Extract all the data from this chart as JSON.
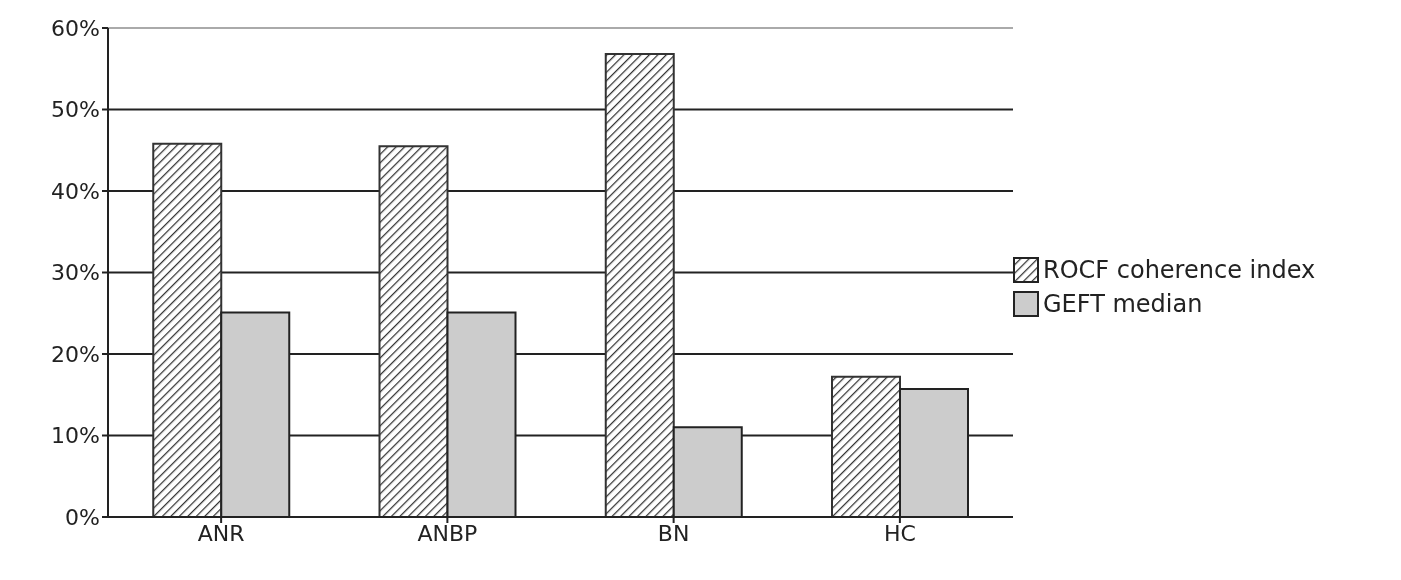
{
  "chart_data": {
    "type": "bar",
    "categories": [
      "ANR",
      "ANBP",
      "BN",
      "HC"
    ],
    "series": [
      {
        "name": "ROCF coherence index",
        "color": "#333333",
        "values": [
          45.8,
          45.5,
          56.8,
          17.2
        ]
      },
      {
        "name": "GEFT median",
        "color": "#cccccc",
        "values": [
          25.1,
          25.1,
          11.0,
          15.7
        ]
      }
    ],
    "ylim": [
      0,
      60
    ],
    "yticks": [
      {
        "value": 0,
        "label": "0%"
      },
      {
        "value": 10,
        "label": "10%"
      },
      {
        "value": 20,
        "label": "20%"
      },
      {
        "value": 30,
        "label": "30%"
      },
      {
        "value": 40,
        "label": "40%"
      },
      {
        "value": 50,
        "label": "50%"
      },
      {
        "value": 60,
        "label": "60%"
      }
    ],
    "grid": "y",
    "legend": "right"
  }
}
